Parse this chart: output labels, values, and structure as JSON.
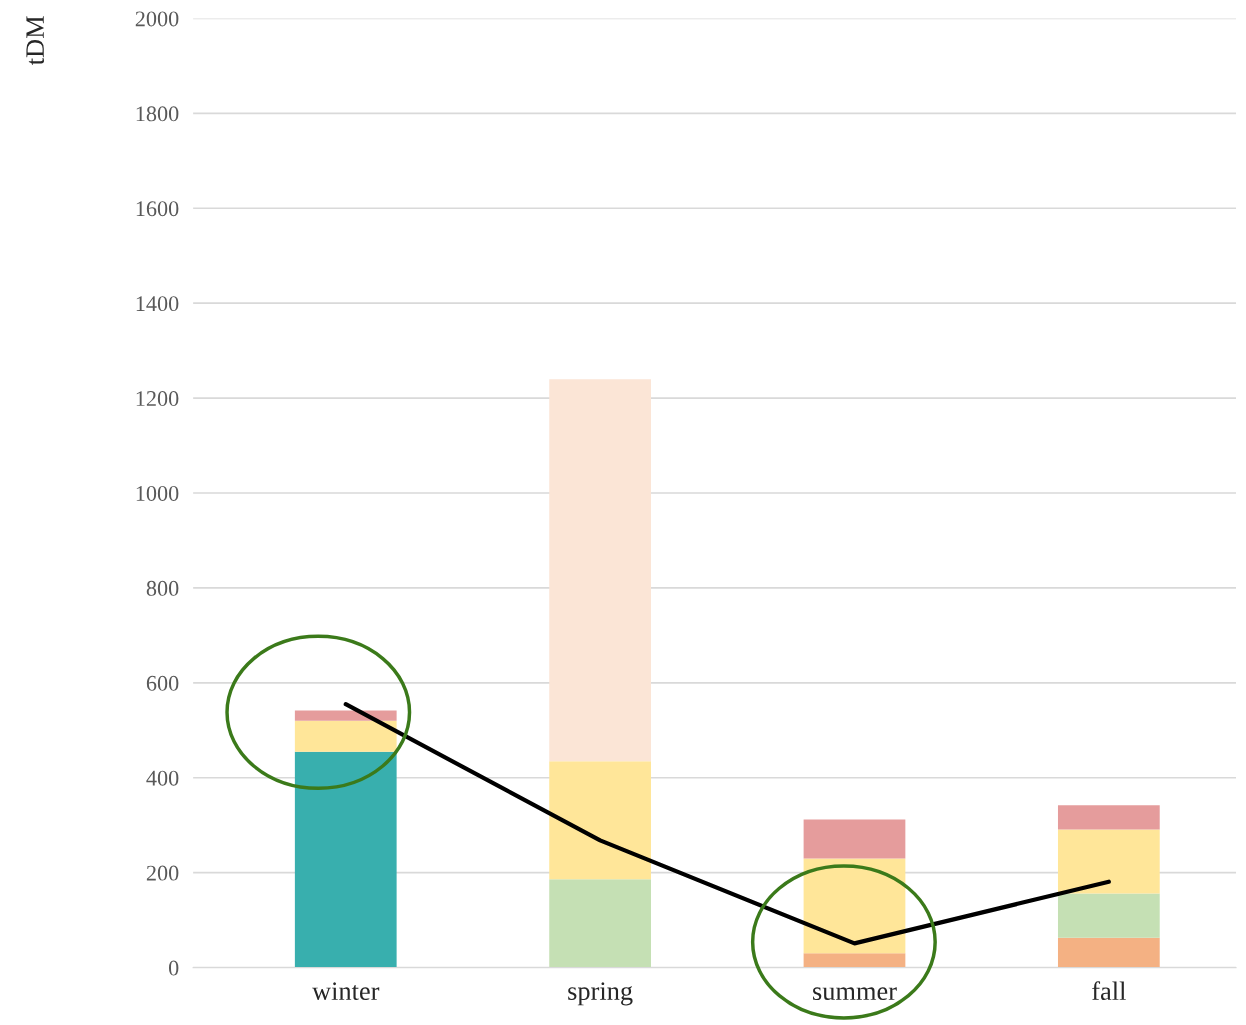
{
  "chart_data": {
    "type": "bar",
    "stacked": true,
    "ylabel": "tDM",
    "categories": [
      "winter",
      "spring",
      "summer",
      "fall"
    ],
    "series": [
      {
        "color": "#38afae",
        "values": [
          455,
          null,
          null,
          null
        ]
      },
      {
        "color": "#f4b183",
        "values": [
          null,
          null,
          30,
          63
        ]
      },
      {
        "color": "#c5e0b4",
        "values": [
          null,
          186,
          null,
          93
        ]
      },
      {
        "color": "#ffe699",
        "values": [
          65,
          249,
          200,
          135
        ]
      },
      {
        "color": "#fbe5d6",
        "values": [
          null,
          805,
          null,
          null
        ]
      },
      {
        "color": "#e59c9c",
        "values": [
          22,
          null,
          82,
          51
        ]
      },
      {
        "type": "line",
        "color": "#000000",
        "values": [
          555,
          268,
          51,
          181
        ]
      }
    ],
    "ylim": [
      0,
      2000
    ],
    "yticks": [
      0,
      200,
      400,
      600,
      800,
      1000,
      1200,
      1400,
      1600,
      1800,
      2000
    ],
    "grid": "y"
  }
}
